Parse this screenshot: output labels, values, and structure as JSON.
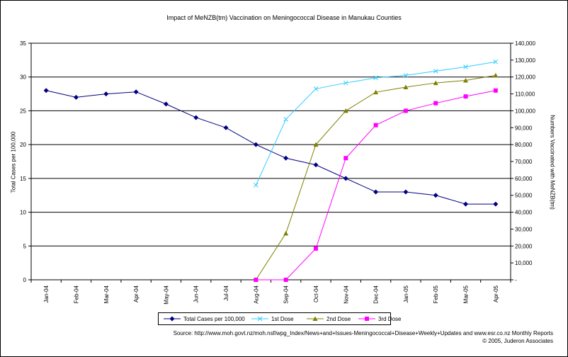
{
  "title": "Impact of MeNZB(tm) Vaccination on Meningococcal Disease in Manukau Counties",
  "source_lines": [
    "Source: http://www.moh.govt.nz/moh.nsf/wpg_Index/News+and+Issues-Meningococcal+Disease+Weekly+Updates and www.esr.co.nz  Monthly Reports",
    "© 2005, Juderon Associates"
  ],
  "chart_data": {
    "type": "line",
    "title": "Impact of MeNZB(tm) Vaccination on Meningococcal Disease in Manukau Counties",
    "categories": [
      "Jan-04",
      "Feb-04",
      "Mar-04",
      "Apr-04",
      "May-04",
      "Jun-04",
      "Jul-04",
      "Aug-04",
      "Sep-04",
      "Oct-04",
      "Nov-04",
      "Dec-04",
      "Jan-05",
      "Feb-05",
      "Mar-05",
      "Apr-05"
    ],
    "ylabel_left": "Total Cases per 100,000",
    "ylabel_right": "Numbers Vaccinated with MeNZB(tm)",
    "ylim_left": [
      0,
      35
    ],
    "yticks_left": [
      "0",
      "5",
      "10",
      "15",
      "20",
      "25",
      "30",
      "35"
    ],
    "ylim_right": [
      0,
      140000
    ],
    "yticks_right": [
      "-",
      "10,000",
      "20,000",
      "30,000",
      "40,000",
      "50,000",
      "60,000",
      "70,000",
      "80,000",
      "90,000",
      "100,000",
      "110,000",
      "120,000",
      "130,000",
      "140,000"
    ],
    "grid": true,
    "legend_position": "bottom",
    "series": [
      {
        "name": "Total Cases per 100,000",
        "axis": "left",
        "color": "#000080",
        "marker": "diamond",
        "values": [
          28,
          27,
          27.5,
          27.8,
          26,
          24,
          22.5,
          20,
          18,
          17,
          15,
          13,
          13,
          12.5,
          11.2,
          11.2
        ]
      },
      {
        "name": "1st Dose",
        "axis": "right",
        "color": "#33ccff",
        "marker": "x",
        "values": [
          null,
          null,
          null,
          null,
          null,
          null,
          null,
          56000,
          95000,
          113000,
          116500,
          119500,
          121000,
          123500,
          126000,
          129000
        ]
      },
      {
        "name": "2nd Dose",
        "axis": "right",
        "color": "#808000",
        "marker": "triangle",
        "values": [
          null,
          null,
          null,
          null,
          null,
          null,
          null,
          0,
          27500,
          80000,
          100000,
          111000,
          114000,
          116500,
          118000,
          121000
        ]
      },
      {
        "name": "3rd Dose",
        "axis": "right",
        "color": "#ff00ff",
        "marker": "square",
        "values": [
          null,
          null,
          null,
          null,
          null,
          null,
          null,
          0,
          0,
          18500,
          72000,
          91500,
          100000,
          104500,
          108500,
          112000
        ]
      }
    ]
  }
}
